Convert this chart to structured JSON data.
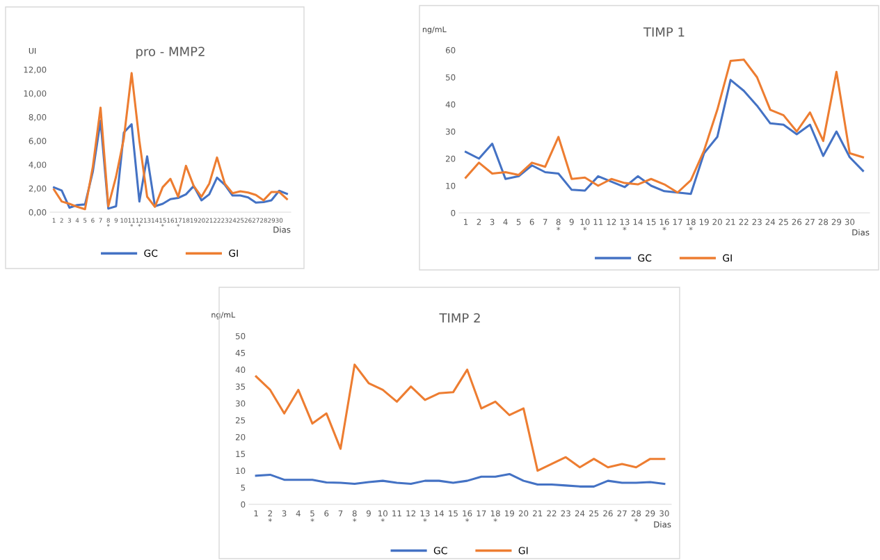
{
  "chart_data": [
    {
      "type": "line",
      "title": "pro - MMP2",
      "ylabel": "UI",
      "xlabel": "Dias",
      "legend": "bottom",
      "grid": false,
      "categories": [
        "1",
        "2",
        "3",
        "4",
        "5",
        "6",
        "7",
        "8\n*",
        "9",
        "10",
        "11\n*",
        "12\n*",
        "13",
        "14",
        "15\n*",
        "16",
        "17\n*",
        "18",
        "19",
        "20",
        "21",
        "22",
        "23",
        "24",
        "25",
        "26",
        "27",
        "28",
        "29",
        "30",
        null
      ],
      "ylim": [
        0,
        12
      ],
      "yticks": [
        {
          "value": 0,
          "label": "0,00"
        },
        {
          "value": 2,
          "label": "2,00"
        },
        {
          "value": 4,
          "label": "4,00"
        },
        {
          "value": 6,
          "label": "6,00"
        },
        {
          "value": 8,
          "label": "8,00"
        },
        {
          "value": 10,
          "label": "10,00"
        },
        {
          "value": 12,
          "label": "12,00"
        }
      ],
      "series": [
        {
          "name": "GC",
          "color": "#4472c4",
          "values": [
            2.08,
            1.82,
            0.38,
            0.6,
            0.65,
            3.4,
            7.7,
            0.3,
            0.5,
            6.7,
            7.4,
            0.9,
            4.7,
            0.5,
            0.7,
            1.1,
            1.2,
            1.5,
            2.2,
            1.0,
            1.5,
            2.9,
            2.3,
            1.4,
            1.4,
            1.25,
            0.8,
            0.85,
            1.0,
            1.8,
            1.55
          ]
        },
        {
          "name": "GI",
          "color": "#ed7d31",
          "values": [
            1.9,
            0.9,
            0.7,
            0.45,
            0.25,
            3.8,
            8.8,
            0.5,
            3.0,
            6.2,
            11.7,
            6.0,
            1.3,
            0.45,
            2.1,
            2.8,
            1.3,
            3.9,
            2.2,
            1.3,
            2.4,
            4.6,
            2.4,
            1.6,
            1.75,
            1.65,
            1.45,
            1.0,
            1.7,
            1.7,
            1.1
          ]
        }
      ]
    },
    {
      "type": "line",
      "title": "TIMP 1",
      "ylabel": "ng/mL",
      "xlabel": "Dias",
      "legend": "bottom",
      "grid": false,
      "categories": [
        "1",
        "2",
        "3",
        "4",
        "5",
        "6",
        "7",
        "8\n*",
        "9",
        "10\n*",
        "11",
        "12",
        "13\n*",
        "14",
        "15",
        "16\n*",
        "17",
        "18\n*",
        "19",
        "20",
        "21",
        "22",
        "23",
        "24",
        "25",
        "26",
        "27",
        "28",
        "29",
        "30",
        null
      ],
      "ylim": [
        0,
        60
      ],
      "yticks": [
        0,
        10,
        20,
        30,
        40,
        50,
        60
      ],
      "series": [
        {
          "name": "GC",
          "color": "#4472c4",
          "values": [
            22.5,
            20,
            25.5,
            12.5,
            13.5,
            17.5,
            15,
            14.5,
            8.5,
            8.2,
            13.5,
            11.5,
            9.5,
            13.5,
            10,
            8,
            7.5,
            7,
            22,
            28,
            49,
            45,
            39.5,
            33,
            32.5,
            29,
            32.5,
            21,
            30,
            20.5,
            15.5
          ]
        },
        {
          "name": "GI",
          "color": "#ed7d31",
          "values": [
            13,
            18.5,
            14.5,
            15,
            14,
            18.5,
            17,
            28,
            12.5,
            13,
            10,
            12.5,
            11,
            10.5,
            12.5,
            10.5,
            7.5,
            12,
            23,
            38,
            56,
            56.5,
            50,
            38,
            36,
            30,
            37,
            26.5,
            52,
            22,
            20.5
          ]
        }
      ]
    },
    {
      "type": "line",
      "title": "TIMP 2",
      "ylabel": "ng/mL",
      "xlabel": "Dias",
      "legend": "bottom",
      "grid": false,
      "categories": [
        "1",
        "2\n*",
        "3",
        "4",
        "5\n*",
        "6",
        "7",
        "8\n*",
        "9",
        "10\n*",
        "11",
        "12",
        "13\n*",
        "14",
        "15",
        "16\n*",
        "17",
        "18\n*",
        "19",
        "20",
        "21",
        "22",
        "23",
        "24",
        "25",
        "26",
        "27",
        "28\n*",
        "29",
        "30"
      ],
      "ylim": [
        0,
        50
      ],
      "yticks": [
        0,
        5,
        10,
        15,
        20,
        25,
        30,
        35,
        40,
        45,
        50
      ],
      "series": [
        {
          "name": "GC",
          "color": "#4472c4",
          "values": [
            8.5,
            8.8,
            7.3,
            7.3,
            7.3,
            6.5,
            6.4,
            6.1,
            6.6,
            7.0,
            6.4,
            6.1,
            7.0,
            7.0,
            6.4,
            7.0,
            8.2,
            8.2,
            9.0,
            7.0,
            5.9,
            5.9,
            5.6,
            5.3,
            5.3,
            7.0,
            6.4,
            6.4,
            6.6,
            6.1
          ]
        },
        {
          "name": "GI",
          "color": "#ed7d31",
          "values": [
            38,
            34,
            27,
            34,
            24,
            27,
            16.5,
            41.5,
            36,
            34,
            30.5,
            35,
            31,
            33,
            33.3,
            40,
            28.5,
            30.5,
            26.5,
            28.5,
            10,
            12,
            14,
            11,
            13.5,
            11,
            12,
            11,
            13.5,
            13.5
          ]
        }
      ]
    }
  ]
}
